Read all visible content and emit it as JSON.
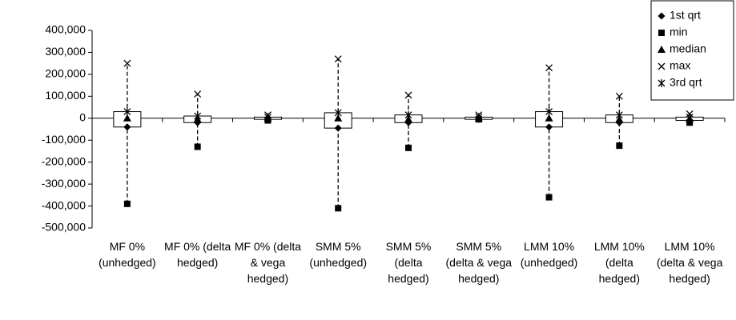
{
  "chart_data": {
    "type": "box",
    "categories": [
      "MF 0% (unhedged)",
      "MF 0% (delta hedged)",
      "MF 0% (delta & vega hedged)",
      "SMM 5% (unhedged)",
      "SMM 5% (delta hedged)",
      "SMM 5% (delta & vega hedged)",
      "LMM 10% (unhedged)",
      "LMM 10% (delta hedged)",
      "LMM 10% (delta & vega hedged)"
    ],
    "series": [
      {
        "name": "1st qrt",
        "color": "#000000",
        "marker": "diamond",
        "values": [
          -40000,
          -20000,
          -5000,
          -45000,
          -20000,
          -5000,
          -40000,
          -20000,
          -10000
        ]
      },
      {
        "name": "min",
        "color": "#000000",
        "marker": "square",
        "values": [
          -390000,
          -130000,
          -10000,
          -410000,
          -135000,
          -5000,
          -360000,
          -125000,
          -20000
        ]
      },
      {
        "name": "median",
        "color": "#000000",
        "marker": "triangle",
        "values": [
          0,
          -5000,
          0,
          0,
          -5000,
          0,
          0,
          -5000,
          -5000
        ]
      },
      {
        "name": "max",
        "color": "#000000",
        "marker": "x",
        "values": [
          250000,
          110000,
          15000,
          270000,
          105000,
          15000,
          230000,
          100000,
          20000
        ]
      },
      {
        "name": "3rd qrt",
        "color": "#000000",
        "marker": "asterisk",
        "values": [
          30000,
          10000,
          5000,
          25000,
          15000,
          5000,
          30000,
          15000,
          5000
        ]
      }
    ],
    "ylim": [
      -500000,
      400000
    ],
    "yticks": [
      {
        "value": -500000,
        "label": "-500,000"
      },
      {
        "value": -400000,
        "label": "-400,000"
      },
      {
        "value": -300000,
        "label": "-300,000"
      },
      {
        "value": -200000,
        "label": "-200,000"
      },
      {
        "value": -100000,
        "label": "-100,000"
      },
      0,
      {
        "value": 100000,
        "label": "100,000"
      },
      {
        "value": 200000,
        "label": "200,000"
      },
      {
        "value": 300000,
        "label": "300,000"
      },
      {
        "value": 400000,
        "label": "400,000"
      }
    ],
    "legend": "top-right"
  }
}
